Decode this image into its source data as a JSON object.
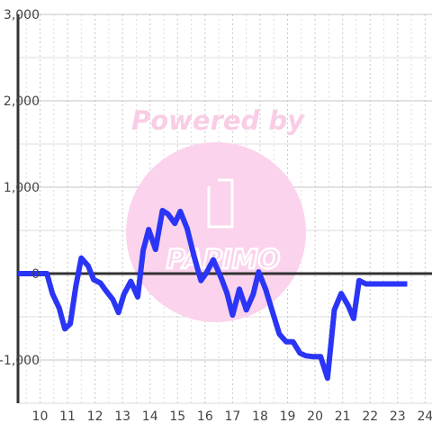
{
  "chart_data": {
    "type": "line",
    "title": "",
    "xlabel": "",
    "ylabel": "",
    "xlim": [
      9.2,
      24.25
    ],
    "ylim": [
      -1500,
      3000
    ],
    "grid": true,
    "legend": "none",
    "x_ticks": [
      10,
      11,
      12,
      13,
      14,
      15,
      16,
      17,
      18,
      19,
      20,
      21,
      22,
      23,
      24
    ],
    "x_tick_labels": [
      "10",
      "11",
      "12",
      "13",
      "14",
      "15",
      "16",
      "17",
      "18",
      "19",
      "20",
      "21",
      "22",
      "23",
      "24"
    ],
    "y_ticks": [
      -1000,
      0,
      1000,
      2000,
      3000
    ],
    "y_tick_labels": [
      "-1,000",
      "0",
      "1,000",
      "2,000",
      "3,000"
    ],
    "series": [
      {
        "color": "#2a35f5",
        "x": [
          9.2,
          10.25,
          10.45,
          10.7,
          10.9,
          11.1,
          11.3,
          11.5,
          11.75,
          11.95,
          12.2,
          12.4,
          12.65,
          12.85,
          13.05,
          13.3,
          13.55,
          13.75,
          13.95,
          14.2,
          14.45,
          14.65,
          14.9,
          15.1,
          15.35,
          15.6,
          15.85,
          16.05,
          16.3,
          16.6,
          16.8,
          17.0,
          17.25,
          17.5,
          17.75,
          17.95,
          18.2,
          18.45,
          18.7,
          18.95,
          19.2,
          19.45,
          19.65,
          19.9,
          20.2,
          20.45,
          20.7,
          20.95,
          21.2,
          21.4,
          21.6,
          21.85,
          22.1,
          22.3,
          22.55,
          22.8,
          23.05,
          23.25,
          23.35
        ],
        "values": [
          0,
          0,
          -230,
          -400,
          -640,
          -580,
          -150,
          180,
          90,
          -70,
          -110,
          -200,
          -300,
          -450,
          -240,
          -90,
          -270,
          270,
          510,
          280,
          730,
          690,
          580,
          720,
          520,
          200,
          -80,
          10,
          160,
          -60,
          -230,
          -480,
          -180,
          -420,
          -240,
          20,
          -180,
          -440,
          -700,
          -790,
          -790,
          -920,
          -950,
          -960,
          -960,
          -1210,
          -420,
          -230,
          -370,
          -520,
          -80,
          -120,
          -120,
          -120,
          -120,
          -120,
          -120,
          -120,
          -120
        ]
      }
    ]
  },
  "watermark": {
    "line1": "Powered by",
    "line2": "PAPIMO",
    "text_color": "#f9cde6",
    "circle_color": "#fbd3ec"
  }
}
